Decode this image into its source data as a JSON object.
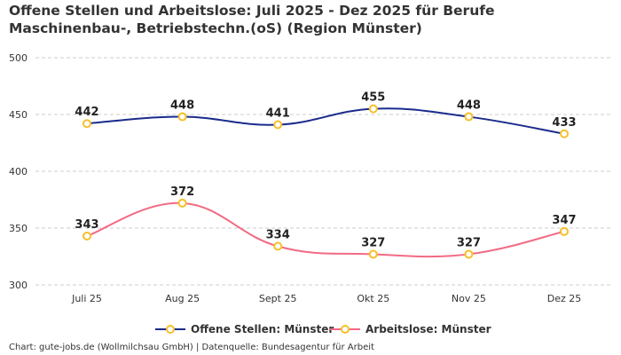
{
  "chart_data": {
    "type": "line",
    "title": "Offene Stellen und Arbeitslose: Juli 2025 - Dez 2025 für Berufe Maschinenbau-, Betriebstechn.(oS) (Region Münster)",
    "categories": [
      "Juli 25",
      "Aug 25",
      "Sept 25",
      "Okt 25",
      "Nov 25",
      "Dez 25"
    ],
    "series": [
      {
        "name": "Offene Stellen: Münster",
        "values": [
          442,
          448,
          441,
          455,
          448,
          433
        ],
        "color": "#1a2b8c"
      },
      {
        "name": "Arbeitslose: Münster",
        "values": [
          343,
          372,
          334,
          327,
          327,
          347
        ],
        "color": "#f26b84"
      }
    ],
    "marker_color": "#f5c02a",
    "ylim": [
      300,
      500
    ],
    "yticks": [
      300,
      350,
      400,
      450,
      500
    ],
    "grid": true,
    "legend": "bottom",
    "footer": "Chart: gute-jobs.de (Wollmilchsau GmbH) | Datenquelle: Bundesagentur für Arbeit"
  }
}
